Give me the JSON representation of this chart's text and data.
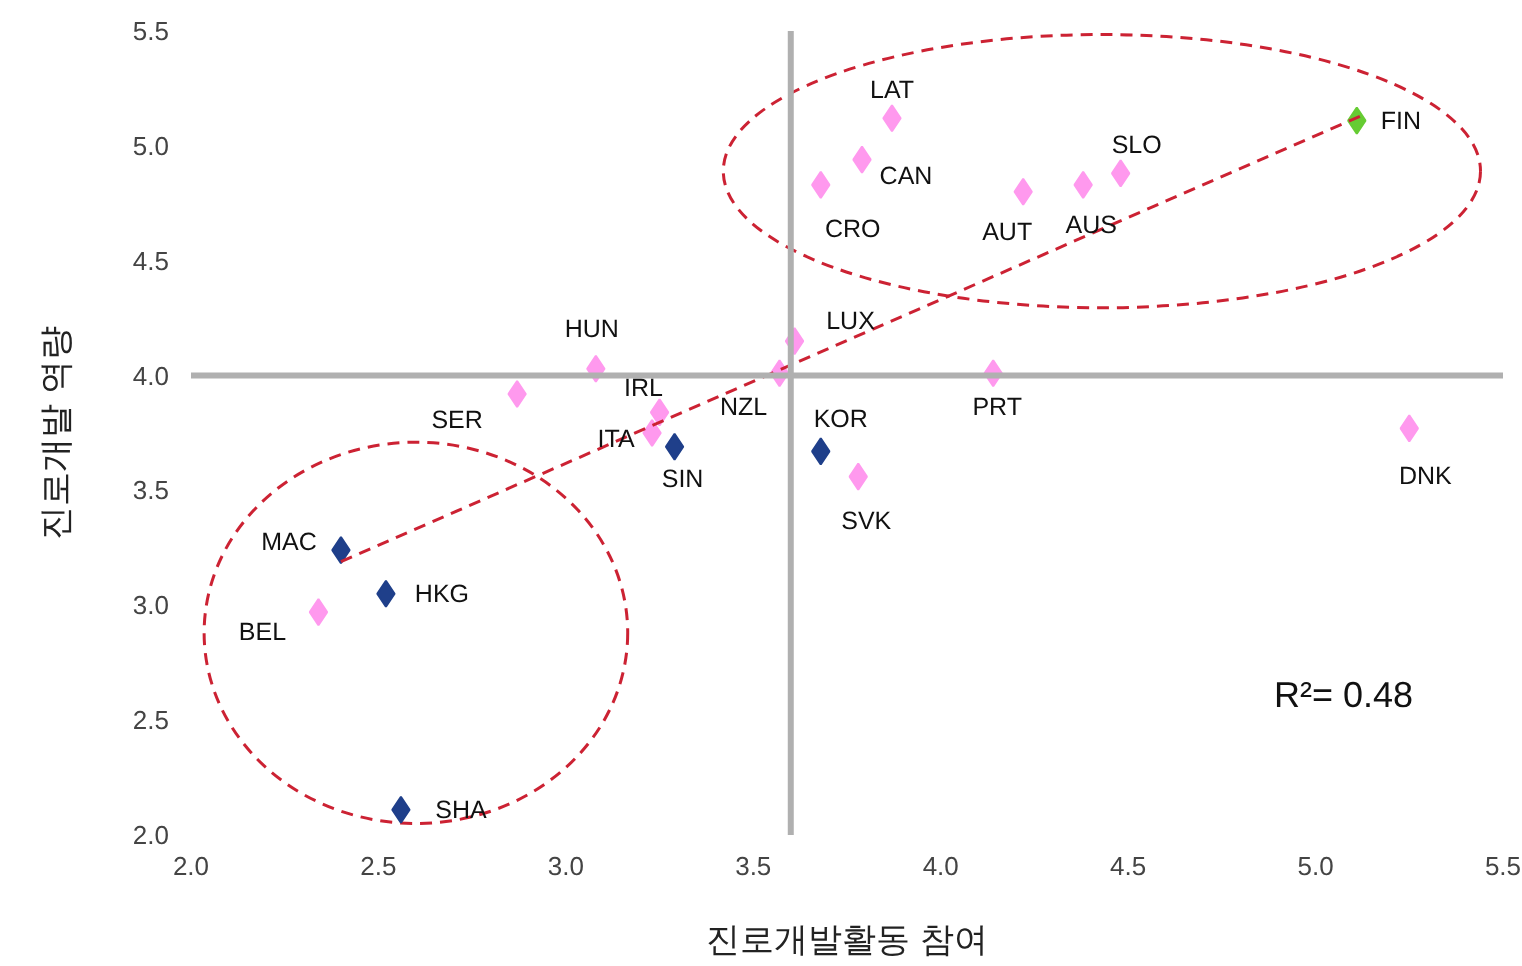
{
  "chart_data": {
    "type": "scatter",
    "xlabel": "진로개발활동 참여",
    "ylabel": "진로개발 역량",
    "xlim": [
      2.0,
      5.5
    ],
    "ylim": [
      2.0,
      5.5
    ],
    "xticks": [
      {
        "value": 2,
        "label": "2.0"
      },
      {
        "value": 2.5,
        "label": "2.5"
      },
      {
        "value": 3,
        "label": "3.0"
      },
      {
        "value": 3.5,
        "label": "3.5"
      },
      {
        "value": 4,
        "label": "4.0"
      },
      {
        "value": 4.5,
        "label": "4.5"
      },
      {
        "value": 5,
        "label": "5.0"
      },
      {
        "value": 5.5,
        "label": "5.5"
      }
    ],
    "yticks": [
      {
        "value": 2,
        "label": "2.0"
      },
      {
        "value": 2.5,
        "label": "2.5"
      },
      {
        "value": 3,
        "label": "3.0"
      },
      {
        "value": 3.5,
        "label": "3.5"
      },
      {
        "value": 4,
        "label": "4.0"
      },
      {
        "value": 4.5,
        "label": "4.5"
      },
      {
        "value": 5,
        "label": "5.0"
      },
      {
        "value": 5.5,
        "label": "5.5"
      }
    ],
    "grid": false,
    "ref_lines": [
      {
        "axis": "x",
        "value": 3.6,
        "label": null,
        "color": "#b0b0b0"
      },
      {
        "axis": "y",
        "value": 4.0,
        "label": null,
        "color": "#b0b0b0"
      }
    ],
    "series": [
      {
        "marker": "diamond",
        "x": [
          3.87,
          3.79,
          3.68,
          4.22,
          4.38,
          4.48,
          5.11,
          3.08,
          3.61,
          3.57,
          4.14,
          2.87,
          3.25,
          3.23,
          3.29,
          3.68,
          3.78,
          5.25,
          2.4,
          2.52,
          2.34,
          2.56
        ],
        "values": [
          5.12,
          4.94,
          4.83,
          4.8,
          4.83,
          4.88,
          5.11,
          4.03,
          4.15,
          4.01,
          4.01,
          3.92,
          3.84,
          3.75,
          3.69,
          3.67,
          3.56,
          3.77,
          3.24,
          3.05,
          2.97,
          2.11
        ],
        "colors": [
          "#ff99ee",
          "#ff99ee",
          "#ff99ee",
          "#ff99ee",
          "#ff99ee",
          "#ff99ee",
          "#66cc33",
          "#ff99ee",
          "#ff99ee",
          "#ff99ee",
          "#ff99ee",
          "#ff99ee",
          "#ff99ee",
          "#ff99ee",
          "#1f3f8a",
          "#1f3f8a",
          "#ff99ee",
          "#ff99ee",
          "#1f3f8a",
          "#1f3f8a",
          "#ff99ee",
          "#1f3f8a"
        ]
      },
      {
        "type": "line",
        "x": [
          2.4,
          5.12
        ],
        "values": [
          3.19,
          5.13
        ],
        "color": "#cc2233",
        "line_style": "dashed"
      }
    ],
    "annotations": [
      {
        "text": "LAT",
        "x": 3.87,
        "y": 5.12
      },
      {
        "text": "CAN",
        "x": 3.79,
        "y": 4.94
      },
      {
        "text": "CRO",
        "x": 3.68,
        "y": 4.83
      },
      {
        "text": "AUT",
        "x": 4.22,
        "y": 4.8
      },
      {
        "text": "AUS",
        "x": 4.38,
        "y": 4.83
      },
      {
        "text": "SLO",
        "x": 4.48,
        "y": 4.88
      },
      {
        "text": "FIN",
        "x": 5.11,
        "y": 5.11
      },
      {
        "text": "HUN",
        "x": 3.08,
        "y": 4.03
      },
      {
        "text": "LUX",
        "x": 3.61,
        "y": 4.15
      },
      {
        "text": "NZL",
        "x": 3.57,
        "y": 4.01
      },
      {
        "text": "PRT",
        "x": 4.14,
        "y": 4.01
      },
      {
        "text": "SER",
        "x": 2.87,
        "y": 3.92
      },
      {
        "text": "IRL",
        "x": 3.25,
        "y": 3.84
      },
      {
        "text": "ITA",
        "x": 3.23,
        "y": 3.75
      },
      {
        "text": "SIN",
        "x": 3.29,
        "y": 3.69
      },
      {
        "text": "KOR",
        "x": 3.68,
        "y": 3.67
      },
      {
        "text": "SVK",
        "x": 3.78,
        "y": 3.56
      },
      {
        "text": "DNK",
        "x": 5.25,
        "y": 3.77
      },
      {
        "text": "MAC",
        "x": 2.4,
        "y": 3.24
      },
      {
        "text": "HKG",
        "x": 2.52,
        "y": 3.05
      },
      {
        "text": "BEL",
        "x": 2.34,
        "y": 2.97
      },
      {
        "text": "SHA",
        "x": 2.56,
        "y": 2.11
      },
      "R²= 0.48"
    ]
  }
}
